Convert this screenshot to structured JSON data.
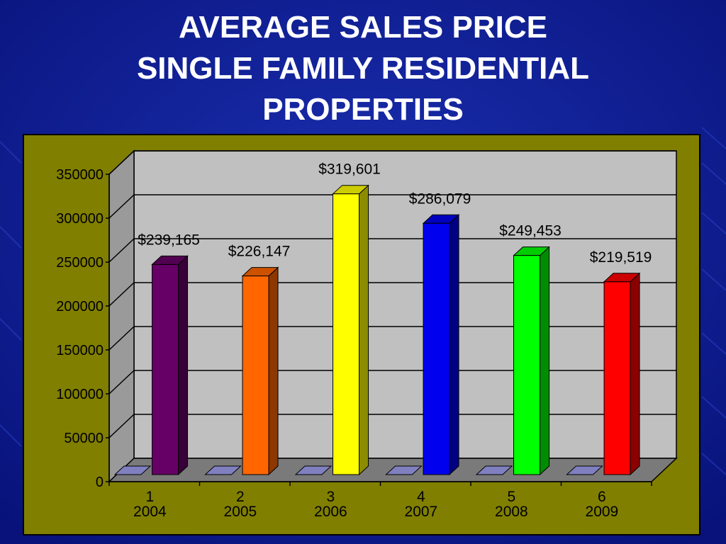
{
  "slide": {
    "title_lines": [
      "AVERAGE SALES PRICE",
      "SINGLE FAMILY RESIDENTIAL",
      "PROPERTIES"
    ]
  },
  "chart_data": {
    "type": "bar",
    "categories": [
      "1",
      "2",
      "3",
      "4",
      "5",
      "6"
    ],
    "category_years": [
      "2004",
      "2005",
      "2006",
      "2007",
      "2008",
      "2009"
    ],
    "values": [
      239165,
      226147,
      319601,
      286079,
      249453,
      219519
    ],
    "data_labels": [
      "$239,165",
      "$226,147",
      "$319,601",
      "$286,079",
      "$249,453",
      "$219,519"
    ],
    "bar_colors": [
      "#660066",
      "#ff6600",
      "#ffff00",
      "#0000ee",
      "#00ff00",
      "#ff0000"
    ],
    "ylim": [
      0,
      350000
    ],
    "yticks": [
      "0",
      "50000",
      "100000",
      "150000",
      "200000",
      "250000",
      "300000",
      "350000"
    ],
    "grid": true,
    "style": "3d-column"
  }
}
